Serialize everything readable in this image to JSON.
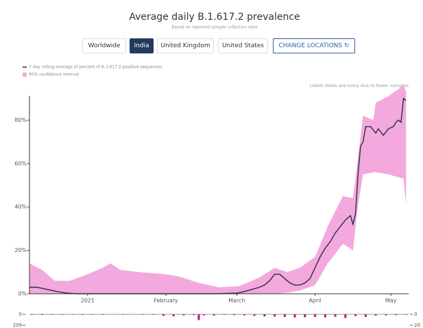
{
  "buttons": [
    "Worldwide",
    "India",
    "United Kingdom",
    "United States"
  ],
  "change_locations": "CHANGE LOCATIONS",
  "chart_data": [
    {
      "type": "line",
      "title": "Average daily B.1.617.2 prevalence",
      "subtitle": "Based on reported sample collection date",
      "annotation": "Latest dates are noisy due to fewer samples",
      "series": [
        {
          "name": "7 day rolling average of percent of B.1.617.2-positive sequences",
          "color": "#2b2b3f",
          "x": [
            -23,
            -20,
            -16,
            -12,
            -8,
            -4,
            0,
            10,
            20,
            31,
            40,
            50,
            59,
            62,
            65,
            68,
            70,
            72,
            74,
            76,
            78,
            80,
            82,
            84,
            86,
            88,
            90,
            92,
            94,
            96,
            98,
            100,
            102,
            104,
            105,
            106,
            107,
            108,
            109,
            110,
            112,
            114,
            115,
            117,
            119,
            121,
            122,
            123,
            124,
            125,
            126
          ],
          "values": [
            3,
            3,
            2,
            1,
            0.3,
            0,
            0,
            0,
            0,
            0,
            0,
            0,
            0.3,
            1,
            2,
            3,
            4,
            6,
            9,
            9,
            7,
            5,
            4,
            4,
            5,
            7,
            12,
            17,
            21,
            24,
            28,
            31,
            34,
            36,
            32,
            37,
            55,
            68,
            70,
            77,
            77,
            74,
            76,
            73,
            76,
            77,
            79,
            80,
            79,
            90,
            89
          ]
        }
      ],
      "band": {
        "name": "95% confidence interval",
        "color": "#f3a9dd",
        "x": [
          -23,
          -18,
          -13,
          -7,
          0,
          6,
          9,
          13,
          20,
          31,
          36,
          44,
          52,
          60,
          68,
          74,
          79,
          84,
          90,
          95,
          101,
          105,
          107,
          109,
          113,
          114,
          119,
          125,
          126
        ],
        "upper": [
          14,
          11,
          6,
          6,
          9,
          12,
          14,
          11,
          10,
          9,
          8,
          5,
          3,
          3.5,
          7.5,
          12,
          10,
          12,
          17,
          31,
          45,
          44,
          63,
          82,
          80,
          88,
          91,
          96,
          93
        ],
        "lower": [
          0,
          0,
          0,
          0,
          0,
          0,
          0,
          0,
          0,
          0,
          0,
          0,
          0,
          0,
          0,
          0,
          0.5,
          1.5,
          4,
          14,
          23,
          20,
          41,
          55,
          56,
          56,
          55,
          53,
          41
        ]
      },
      "xlim": [
        -23,
        127
      ],
      "xticks": [
        {
          "value": 0,
          "label": "2021"
        },
        {
          "value": 31,
          "label": "February"
        },
        {
          "value": 59,
          "label": "March"
        },
        {
          "value": 90,
          "label": "April"
        },
        {
          "value": 120,
          "label": "May"
        }
      ],
      "ylim": [
        0,
        100
      ],
      "yticks": [
        {
          "value": 0,
          "label": "0%"
        },
        {
          "value": 20,
          "label": "20%"
        },
        {
          "value": 40,
          "label": "40%"
        },
        {
          "value": 60,
          "label": "60%"
        },
        {
          "value": 80,
          "label": "80%"
        }
      ]
    },
    {
      "type": "bar",
      "color": "#b5187f",
      "x": [
        -22,
        -18,
        -14,
        -10,
        -6,
        -2,
        2,
        6,
        10,
        14,
        18,
        22,
        26,
        30,
        34,
        38,
        42,
        44,
        46,
        50,
        54,
        58,
        62,
        66,
        70,
        74,
        78,
        82,
        86,
        90,
        94,
        98,
        102,
        106,
        110,
        114,
        118,
        122,
        126
      ],
      "values": [
        10,
        12,
        8,
        10,
        8,
        10,
        8,
        10,
        6,
        8,
        6,
        8,
        10,
        30,
        40,
        20,
        15,
        110,
        20,
        25,
        10,
        15,
        20,
        30,
        40,
        45,
        50,
        60,
        55,
        50,
        60,
        45,
        70,
        35,
        50,
        25,
        20,
        15,
        10
      ],
      "ylim": [
        0,
        209
      ],
      "yticks": [
        0,
        209
      ],
      "y2lim": [
        0,
        20
      ],
      "y2ticks": [
        0,
        20
      ]
    }
  ]
}
